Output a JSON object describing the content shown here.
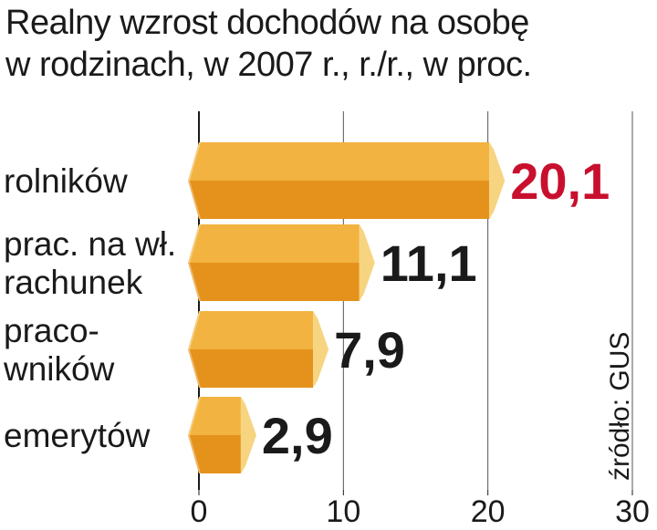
{
  "chart_data": {
    "type": "bar",
    "orientation": "horizontal",
    "title_lines": [
      "Realny wzrost dochodów na osobę",
      "w rodzinach, w 2007 r., r./r., w proc."
    ],
    "categories": [
      [
        "rolników"
      ],
      [
        "prac. na wł.",
        "rachunek"
      ],
      [
        "praco-",
        "wników"
      ],
      [
        "emerytów"
      ]
    ],
    "values": [
      20.1,
      11.1,
      7.9,
      2.9
    ],
    "value_labels": [
      "20,1",
      "11,1",
      "7,9",
      "2,9"
    ],
    "value_label_colors": [
      "#c8102e",
      "#1a1a1a",
      "#1a1a1a",
      "#1a1a1a"
    ],
    "xticks": [
      0,
      10,
      20,
      30
    ],
    "xlim": [
      0,
      30
    ],
    "grid": true,
    "source": "źródło: GUS",
    "colors": {
      "bar_top": "#f2b340",
      "bar_bottom": "#e5921c",
      "bar_tip": "#f7d480",
      "grid": "#555555",
      "highlight": "#c8102e"
    }
  }
}
